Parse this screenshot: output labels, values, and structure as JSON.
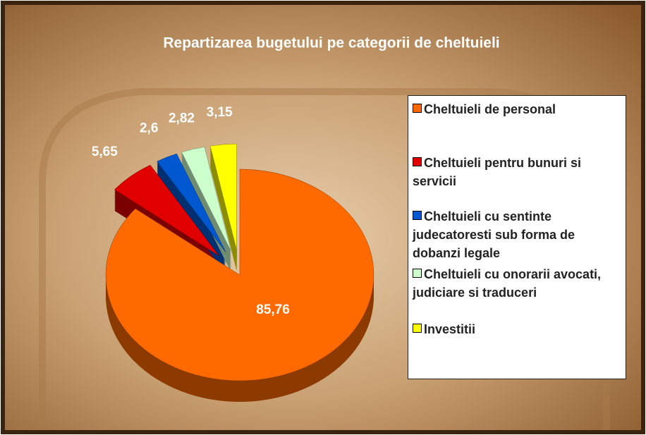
{
  "chart_data": {
    "type": "pie",
    "title": "Repartizarea bugetului pe categorii de cheltuieli",
    "categories": [
      "Cheltuieli de personal",
      "Cheltuieli pentru bunuri si servicii",
      "Cheltuieli cu sentinte judecatoresti sub forma de dobanzi legale",
      "Cheltuieli cu onorarii avocati, judiciare si traduceri",
      "Investitii"
    ],
    "values": [
      85.76,
      5.65,
      2.6,
      2.82,
      3.15
    ],
    "value_labels": [
      "85,76",
      "5,65",
      "2,6",
      "2,82",
      "3,15"
    ],
    "colors": [
      "#ff6a00",
      "#e00000",
      "#0058d0",
      "#ccffcc",
      "#ffff00"
    ],
    "legend": "right"
  }
}
